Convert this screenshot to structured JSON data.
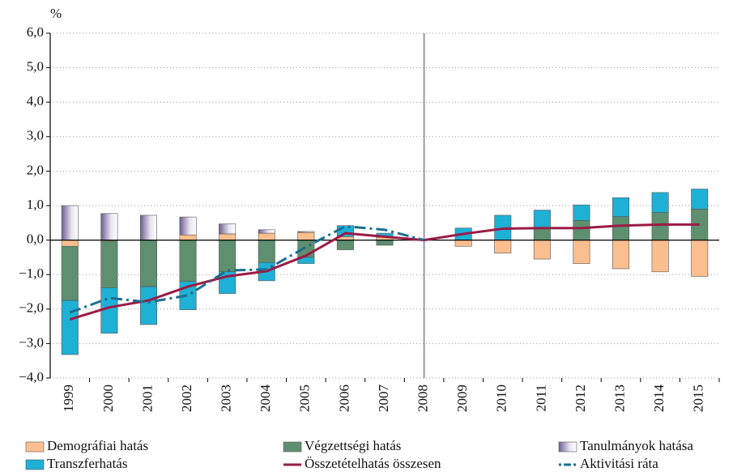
{
  "chart_data": {
    "type": "bar",
    "ylabel": "%",
    "categories": [
      "1999",
      "2000",
      "2001",
      "2002",
      "2003",
      "2004",
      "2005",
      "2006",
      "2007",
      "2008",
      "2009",
      "2010",
      "2011",
      "2012",
      "2013",
      "2014",
      "2015"
    ],
    "series": [
      {
        "name": "Demográfiai hatás",
        "kind": "bar",
        "color": "#fbbf8f",
        "values": [
          -0.18,
          -0.03,
          0,
          0.15,
          0.18,
          0.2,
          0.22,
          0.1,
          0.08,
          0,
          -0.18,
          -0.38,
          -0.55,
          -0.68,
          -0.83,
          -0.92,
          -1.05
        ]
      },
      {
        "name": "Végzettségi hatás",
        "kind": "bar",
        "color": "#5e8f6f",
        "values": [
          -1.57,
          -1.35,
          -1.35,
          -1.2,
          -0.92,
          -0.65,
          -0.5,
          -0.28,
          -0.15,
          0,
          0,
          0,
          0.35,
          0.57,
          0.68,
          0.8,
          0.9
        ]
      },
      {
        "name": "Tanulmányok hatása",
        "kind": "bar",
        "color": "#8a7aa5",
        "values": [
          1.0,
          0.77,
          0.72,
          0.52,
          0.29,
          0.1,
          0.03,
          0,
          0,
          0,
          0,
          0,
          0,
          0,
          0,
          0,
          0
        ]
      },
      {
        "name": "Transzferhatás",
        "kind": "bar",
        "color": "#1fb0d6",
        "values": [
          -1.57,
          -1.32,
          -1.1,
          -0.82,
          -0.63,
          -0.53,
          -0.18,
          0.32,
          0.12,
          0,
          0.35,
          0.72,
          0.52,
          0.45,
          0.55,
          0.58,
          0.58
        ]
      },
      {
        "name": "Összetételhatás összesen",
        "kind": "line",
        "color": "#9b1b45",
        "values": [
          -2.3,
          -1.95,
          -1.75,
          -1.35,
          -1.05,
          -0.9,
          -0.45,
          0.2,
          0.1,
          0,
          0.18,
          0.33,
          0.35,
          0.35,
          0.42,
          0.45,
          0.45
        ]
      },
      {
        "name": "Aktivitási ráta",
        "kind": "line",
        "style": "dashdot",
        "color": "#1b6e8e",
        "values": [
          -2.1,
          -1.68,
          -1.8,
          -1.6,
          -0.88,
          -0.85,
          -0.2,
          0.4,
          0.3,
          0,
          null,
          null,
          null,
          null,
          null,
          null,
          null
        ]
      }
    ],
    "ylim": [
      -4,
      6
    ],
    "yticks": [
      {
        "value": 6,
        "label": "6,0"
      },
      {
        "value": 5,
        "label": "5,0"
      },
      {
        "value": 4,
        "label": "4,0"
      },
      {
        "value": 3,
        "label": "3,0"
      },
      {
        "value": 2,
        "label": "2,0"
      },
      {
        "value": 1,
        "label": "1,0"
      },
      {
        "value": 0,
        "label": "0,0"
      },
      {
        "value": -1,
        "label": "−1,0"
      },
      {
        "value": -2,
        "label": "−2,0"
      },
      {
        "value": -3,
        "label": "−3,0"
      },
      {
        "value": -4,
        "label": "−4,0"
      }
    ],
    "grid": true
  }
}
